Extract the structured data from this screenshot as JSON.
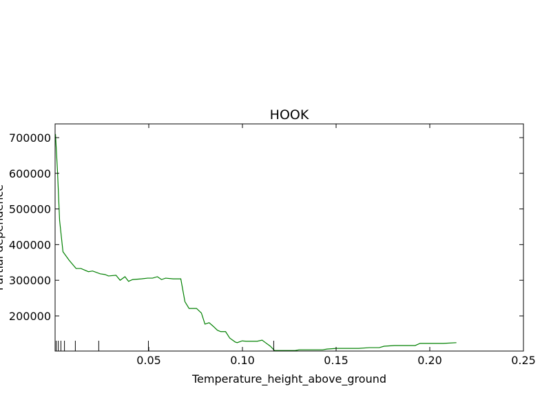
{
  "chart_data": {
    "type": "line",
    "title": "HOOK",
    "x_label": "Temperature_height_above_ground",
    "y_label": "Partial dependence",
    "xlim": [
      0,
      0.25
    ],
    "ylim": [
      101500,
      738500
    ],
    "xticks": [
      0.05,
      {
        "value": 0.1,
        "label": "0.10"
      },
      0.15,
      {
        "value": 0.2,
        "label": "0.20"
      },
      0.25
    ],
    "yticks": [
      200000,
      300000,
      400000,
      500000,
      600000,
      700000
    ],
    "deciles": [
      0.0006,
      0.0017,
      0.0031,
      0.005,
      0.0108,
      0.0233,
      0.0498,
      0.1167
    ],
    "series": [
      {
        "color": "#008000",
        "x": [
          0.0002,
          0.0013,
          0.0024,
          0.0042,
          0.0075,
          0.0112,
          0.0138,
          0.0178,
          0.02,
          0.0241,
          0.0267,
          0.0285,
          0.0325,
          0.0347,
          0.0373,
          0.0392,
          0.0414,
          0.0461,
          0.0494,
          0.052,
          0.0546,
          0.0568,
          0.059,
          0.063,
          0.0671,
          0.0693,
          0.0715,
          0.0755,
          0.0781,
          0.08,
          0.0822,
          0.0844,
          0.0866,
          0.0884,
          0.091,
          0.0932,
          0.0961,
          0.0972,
          0.0998,
          0.102,
          0.1046,
          0.1079,
          0.1105,
          0.1123,
          0.1149,
          0.1171,
          0.1281,
          0.1303,
          0.1428,
          0.1451,
          0.1502,
          0.1583,
          0.162,
          0.1678,
          0.173,
          0.1756,
          0.1811,
          0.1849,
          0.1922,
          0.1948,
          0.2014,
          0.2072,
          0.2142
        ],
        "values": [
          710000,
          603000,
          468000,
          380000,
          356000,
          333000,
          333000,
          324000,
          326000,
          318000,
          316000,
          312000,
          314000,
          300000,
          310000,
          297000,
          302000,
          304000,
          306000,
          306000,
          310000,
          302000,
          306000,
          304000,
          304000,
          240000,
          221000,
          221000,
          208000,
          177000,
          181000,
          171000,
          160000,
          156000,
          156000,
          138000,
          127000,
          125000,
          130000,
          129000,
          129000,
          129000,
          132000,
          125000,
          115000,
          103000,
          103000,
          105000,
          105000,
          107000,
          109000,
          109000,
          109000,
          111000,
          111000,
          115000,
          117000,
          117000,
          117000,
          123000,
          123000,
          123000,
          125000
        ]
      }
    ]
  }
}
